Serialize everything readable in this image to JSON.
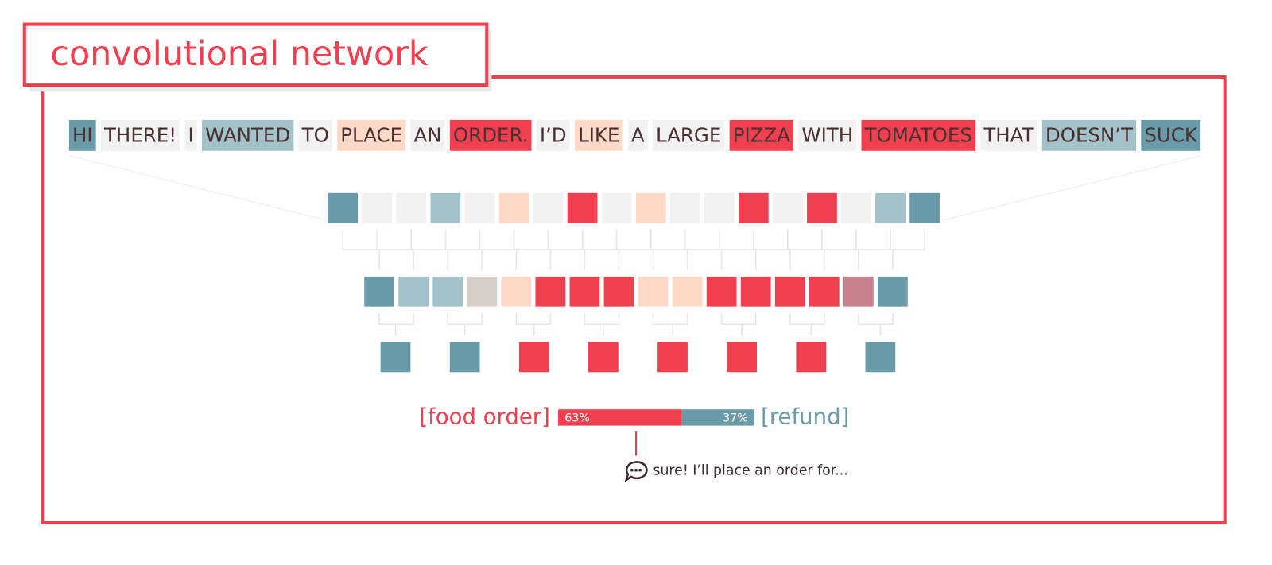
{
  "title": "convolutional network",
  "tokens": [
    {
      "text": "HI",
      "color": "#6a9ba8"
    },
    {
      "text": "THERE!",
      "color": "#f2f2f2"
    },
    {
      "text": "I",
      "color": "#f2f2f2"
    },
    {
      "text": "WANTED",
      "color": "#a3c2ca"
    },
    {
      "text": "TO",
      "color": "#f2f2f2"
    },
    {
      "text": "PLACE",
      "color": "#fdd9c8"
    },
    {
      "text": "AN",
      "color": "#f2f2f2"
    },
    {
      "text": "ORDER.",
      "color": "#f04050"
    },
    {
      "text": "I’D",
      "color": "#f2f2f2"
    },
    {
      "text": "LIKE",
      "color": "#fdd9c8"
    },
    {
      "text": "A",
      "color": "#f2f2f2"
    },
    {
      "text": "LARGE",
      "color": "#f2f2f2"
    },
    {
      "text": "PIZZA",
      "color": "#f04050"
    },
    {
      "text": "WITH",
      "color": "#f2f2f2"
    },
    {
      "text": "TOMATOES",
      "color": "#f04050"
    },
    {
      "text": "THAT",
      "color": "#f2f2f2"
    },
    {
      "text": "DOESN’T",
      "color": "#a3c2ca"
    },
    {
      "text": "SUCK",
      "color": "#6a9ba8"
    }
  ],
  "layers": [
    [
      "#6a9ba8",
      "#f2f2f2",
      "#f2f2f2",
      "#a3c2ca",
      "#f2f2f2",
      "#fdd9c8",
      "#f2f2f2",
      "#f04050",
      "#f2f2f2",
      "#fdd9c8",
      "#f2f2f2",
      "#f2f2f2",
      "#f04050",
      "#f2f2f2",
      "#f04050",
      "#f2f2f2",
      "#a3c2ca",
      "#6a9ba8"
    ],
    [
      "#6a9ba8",
      "#a3c2ca",
      "#a3c2ca",
      "#d6cfca",
      "#fdd9c8",
      "#f04050",
      "#f04050",
      "#f04050",
      "#fdd9c8",
      "#fdd9c8",
      "#f04050",
      "#f04050",
      "#f04050",
      "#f04050",
      "#c98290",
      "#6a9ba8"
    ],
    [
      "#6a9ba8",
      "#6a9ba8",
      "#f04050",
      "#f04050",
      "#f04050",
      "#f04050",
      "#f04050",
      "#6a9ba8"
    ]
  ],
  "split": [
    {
      "name": "[food order]",
      "value": 63,
      "label": "63%",
      "color": "#f04050"
    },
    {
      "name": "[refund]",
      "value": 37,
      "label": "37%",
      "color": "#6a9ba8"
    }
  ],
  "response": "sure! I’ll place an order for..."
}
